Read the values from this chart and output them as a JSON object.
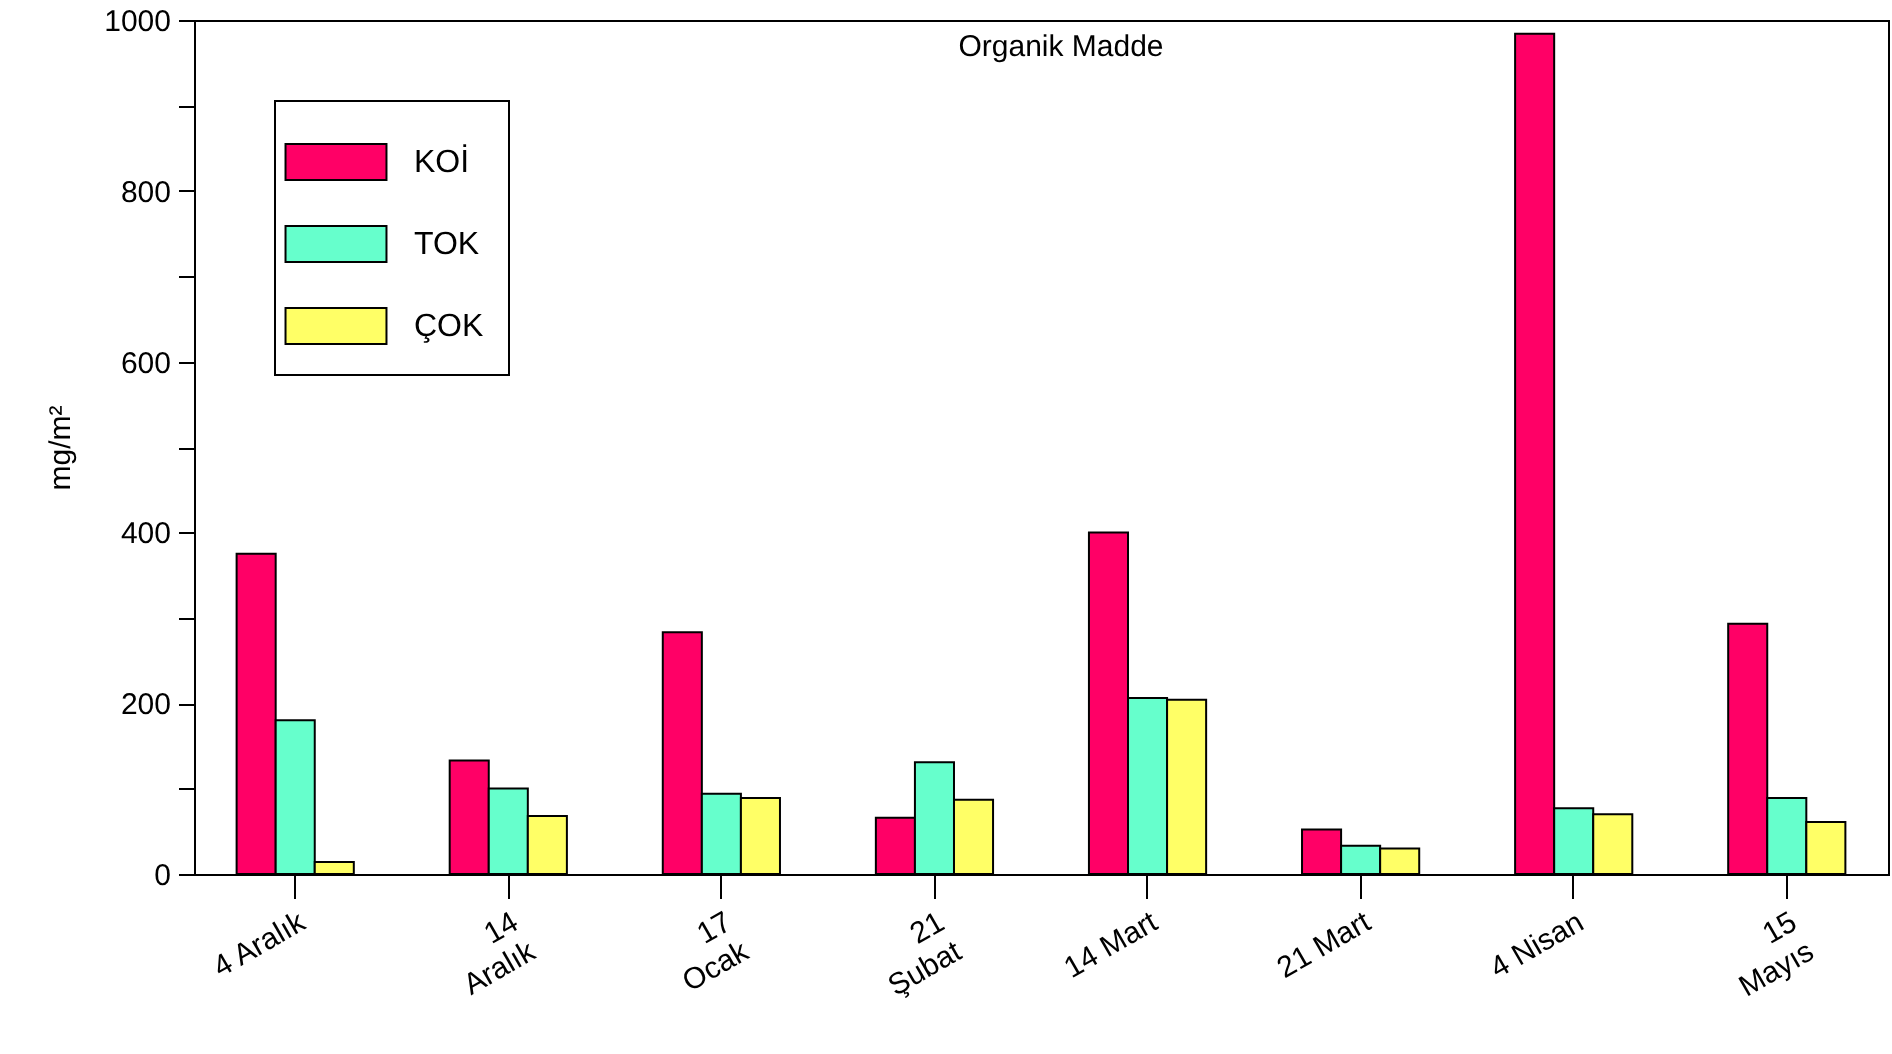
{
  "chart_data": {
    "type": "bar",
    "title": "Organik Madde",
    "ylabel": "mg/m²",
    "categories": [
      "4 Aralık",
      "14\nAralık",
      "17\nOcak",
      "21\nŞubat",
      "14 Mart",
      "21 Mart",
      "4 Nisan",
      "15\nMayıs"
    ],
    "series": [
      {
        "name": "KOİ",
        "color": "#ff0066",
        "values": [
          375,
          133,
          283,
          66,
          400,
          52,
          984,
          293
        ]
      },
      {
        "name": "TOK",
        "color": "#66ffcc",
        "values": [
          180,
          100,
          94,
          131,
          206,
          33,
          77,
          89
        ]
      },
      {
        "name": "ÇOK",
        "color": "#ffff66",
        "values": [
          14,
          68,
          89,
          87,
          204,
          30,
          70,
          61
        ]
      }
    ],
    "ylim": [
      0,
      1000
    ],
    "yticks": [
      0,
      {
        "value": 100,
        "label": null
      },
      200,
      {
        "value": 300,
        "label": null
      },
      400,
      {
        "value": 500,
        "label": null
      },
      600,
      {
        "value": 700,
        "label": null
      },
      800,
      {
        "value": 900,
        "label": null
      },
      1000
    ],
    "legend": "top left",
    "grid": false
  }
}
